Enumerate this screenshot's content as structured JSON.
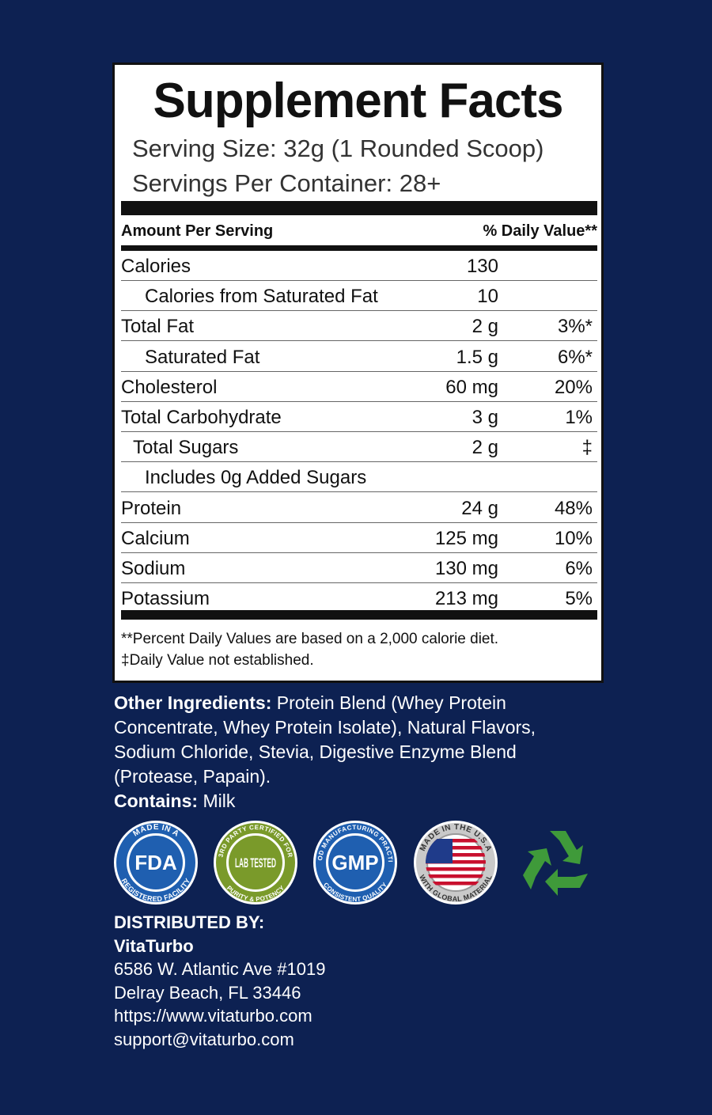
{
  "panel": {
    "title": "Supplement Facts",
    "serving_size": "Serving Size: 32g (1 Rounded Scoop)",
    "servings_per_container": "Servings Per Container: 28+",
    "header": {
      "amount": "Amount Per Serving",
      "daily_value": "% Daily Value**"
    },
    "rows": [
      {
        "name": "Calories",
        "amount": "130"
      },
      {
        "name": "Calories from Saturated Fat",
        "amount": "10"
      },
      {
        "name": "Total Fat",
        "amount": "2 g",
        "dv": "3%*"
      },
      {
        "name": "Saturated Fat",
        "amount": "1.5 g",
        "dv": "6%*"
      },
      {
        "name": "Cholesterol",
        "amount": "60 mg",
        "dv": "20%"
      },
      {
        "name": "Total Carbohydrate",
        "amount": "3 g",
        "dv": "1%"
      },
      {
        "name": "Total Sugars",
        "amount": "2 g",
        "dv": "‡"
      },
      {
        "name": "Includes 0g Added Sugars"
      },
      {
        "name": "Protein",
        "amount": "24 g",
        "dv": "48%"
      },
      {
        "name": "Calcium",
        "amount": "125 mg",
        "dv": "10%"
      },
      {
        "name": "Sodium",
        "amount": "130 mg",
        "dv": "6%"
      },
      {
        "name": "Potassium",
        "amount": "213 mg",
        "dv": "5%"
      }
    ],
    "footnotes": [
      "**Percent Daily Values are based on a 2,000 calorie diet.",
      "‡Daily Value not established."
    ]
  },
  "ingredients": {
    "label": "Other Ingredients:",
    "text": "Protein Blend (Whey Protein Concentrate, Whey Protein Isolate), Natural Flavors, Sodium Chloride, Stevia, Digestive Enzyme Blend (Protease, Papain).",
    "contains_label": "Contains:",
    "contains": "Milk"
  },
  "badges": [
    {
      "top": "MADE IN A",
      "main": "FDA",
      "bottom": "REGISTERED FACILITY"
    },
    {
      "top": "3RD PARTY CERTIFIED FOR",
      "main": "LAB TESTED",
      "bottom": "PURITY & POTENCY"
    },
    {
      "top": "GOOD MANUFACTURING PRACTICE",
      "main": "GMP",
      "bottom": "CONSISTENT QUALITY"
    },
    {
      "top": "MADE IN THE U.S.A",
      "bottom": "WITH GLOBAL MATERIAL"
    }
  ],
  "distributor": {
    "heading": "DISTRIBUTED BY:",
    "name": "VitaTurbo",
    "lines": [
      "6586 W. Atlantic Ave #1019",
      "Delray Beach, FL 33446",
      "https://www.vitaturbo.com",
      "support@vitaturbo.com"
    ]
  }
}
